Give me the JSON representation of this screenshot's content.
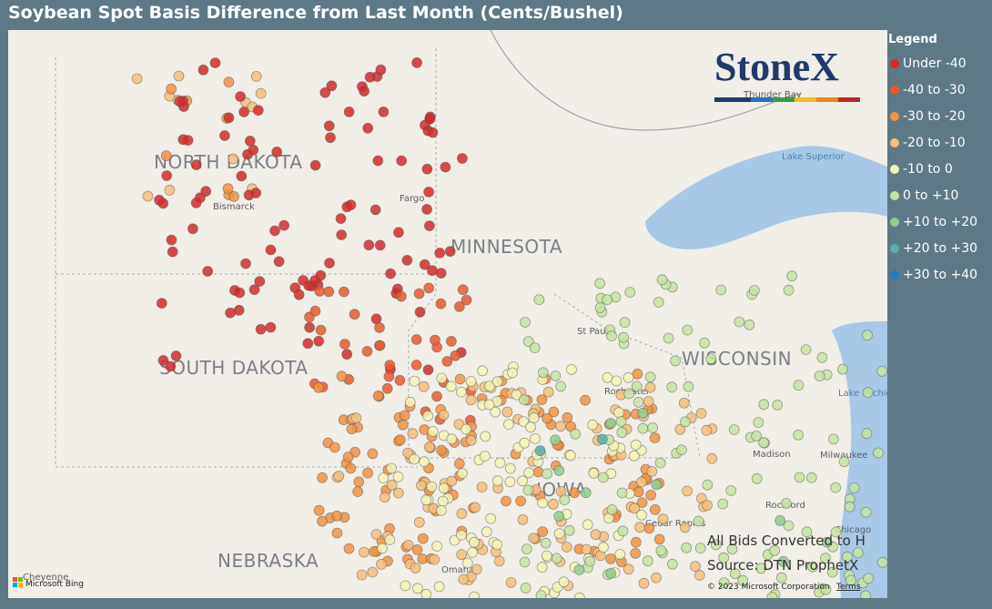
{
  "title": "Soybean Spot Basis Difference from Last Month (Cents/Bushel)",
  "legend": {
    "title": "Legend",
    "items": [
      {
        "label": "Under -40",
        "color": "#d22b2b"
      },
      {
        "label": "-40 to -30",
        "color": "#e65a2e"
      },
      {
        "label": "-30 to -20",
        "color": "#f09343"
      },
      {
        "label": "-20 to -10",
        "color": "#f6c07c"
      },
      {
        "label": "-10 to 0",
        "color": "#f3f3b5"
      },
      {
        "label": "0 to +10",
        "color": "#c6e4a2"
      },
      {
        "label": "+10 to +20",
        "color": "#8fce8d"
      },
      {
        "label": "+20 to +30",
        "color": "#5aaeae"
      },
      {
        "label": "+30 to +40",
        "color": "#2b7bba"
      }
    ]
  },
  "logo": "StoneX",
  "map_labels": {
    "states": [
      "NORTH DAKOTA",
      "SOUTH DAKOTA",
      "NEBRASKA",
      "MINNESOTA",
      "WISCONSIN",
      "IOWA"
    ],
    "cities": [
      "Bismarck",
      "Fargo",
      "St Paul",
      "Rochester",
      "Madison",
      "Milwaukee",
      "Rockford",
      "Chicago",
      "Omaha",
      "Cheyenne",
      "Thunder Bay",
      "Cedar Rapids"
    ],
    "water": [
      "Lake Superior",
      "Lake Michigan"
    ]
  },
  "notes": [
    "All Bids Converted to H",
    "Source: DTN ProphetX"
  ],
  "attribution": {
    "bing": "Microsoft Bing",
    "copyright": "© 2023 Microsoft Corporation",
    "terms": "Terms"
  }
}
